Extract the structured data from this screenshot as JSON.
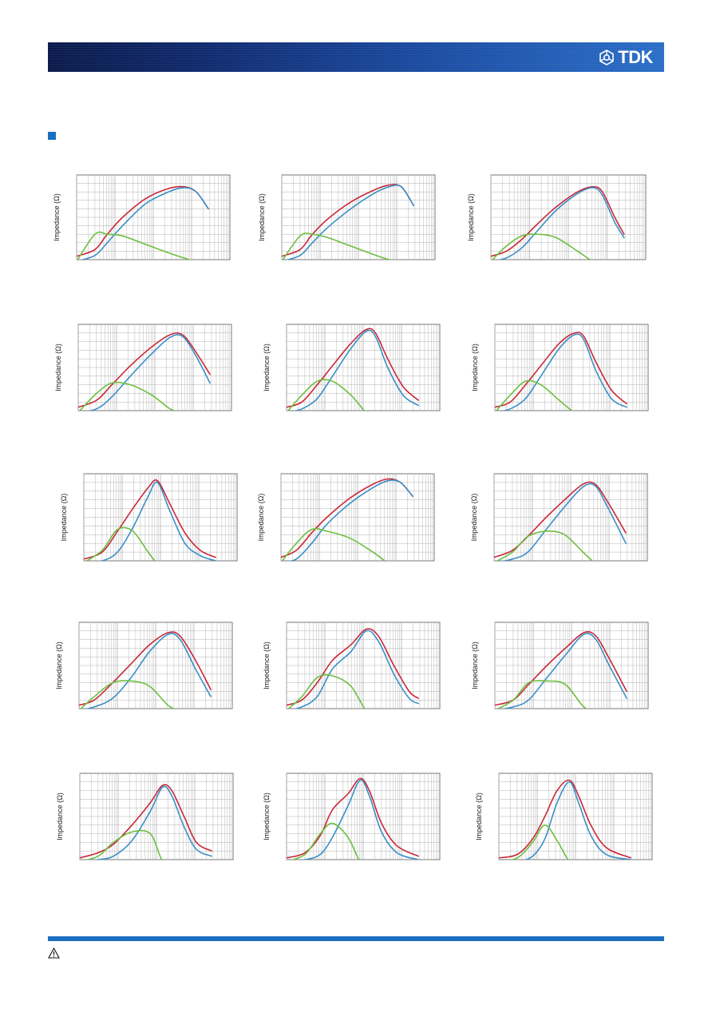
{
  "header": {
    "brand": "TDK",
    "logo_icon": "tdk-emblem-icon"
  },
  "warning_icon": "warning-triangle-icon",
  "colors": {
    "Z": "#c8283a",
    "X": "#3a8fc8",
    "R": "#6cbf3e",
    "grid": "#b0b0b0",
    "accent": "#1a6fc0"
  },
  "chart_data": [
    {
      "type": "line",
      "ylabel": "Impedance (Ω)",
      "x": [
        0,
        0.12,
        0.2,
        0.3,
        0.45,
        0.6,
        0.7,
        0.78,
        0.86
      ],
      "series": [
        {
          "values": [
            0.04,
            0.12,
            0.3,
            0.5,
            0.72,
            0.84,
            0.86,
            0.8,
            0.6
          ]
        },
        {
          "values": [
            -0.02,
            0.05,
            0.2,
            0.4,
            0.66,
            0.8,
            0.85,
            0.8,
            0.6
          ]
        },
        {
          "values": [
            -0.02,
            0.3,
            0.3,
            0.28,
            0.18,
            0.08,
            0.02,
            -0.02,
            -0.02
          ]
        }
      ]
    },
    {
      "type": "line",
      "ylabel": "Impedance (Ω)",
      "x": [
        0,
        0.12,
        0.2,
        0.3,
        0.45,
        0.6,
        0.7,
        0.78,
        0.86
      ],
      "series": [
        {
          "values": [
            0.04,
            0.12,
            0.3,
            0.48,
            0.68,
            0.82,
            0.88,
            0.86,
            0.64
          ]
        },
        {
          "values": [
            -0.02,
            0.05,
            0.2,
            0.38,
            0.6,
            0.78,
            0.86,
            0.86,
            0.64
          ]
        },
        {
          "values": [
            -0.02,
            0.28,
            0.3,
            0.26,
            0.16,
            0.06,
            0.0,
            -0.02,
            -0.02
          ]
        }
      ]
    },
    {
      "type": "line",
      "ylabel": "Impedance (Ω)",
      "x": [
        0,
        0.1,
        0.2,
        0.3,
        0.42,
        0.56,
        0.66,
        0.72,
        0.8,
        0.86
      ],
      "series": [
        {
          "values": [
            0.04,
            0.1,
            0.24,
            0.42,
            0.62,
            0.8,
            0.86,
            0.8,
            0.5,
            0.3
          ]
        },
        {
          "values": [
            -0.02,
            0.02,
            0.14,
            0.34,
            0.58,
            0.78,
            0.85,
            0.76,
            0.44,
            0.26
          ]
        },
        {
          "values": [
            -0.02,
            0.16,
            0.28,
            0.3,
            0.26,
            0.1,
            -0.02,
            -0.02,
            -0.02,
            -0.02
          ]
        }
      ]
    },
    {
      "type": "line",
      "ylabel": "Impedance (Ω)",
      "x": [
        0,
        0.12,
        0.22,
        0.34,
        0.48,
        0.6,
        0.68,
        0.76,
        0.86
      ],
      "series": [
        {
          "values": [
            0.04,
            0.12,
            0.3,
            0.52,
            0.74,
            0.88,
            0.88,
            0.7,
            0.42
          ]
        },
        {
          "values": [
            -0.02,
            0.02,
            0.16,
            0.4,
            0.66,
            0.85,
            0.86,
            0.66,
            0.32
          ]
        },
        {
          "values": [
            -0.02,
            0.2,
            0.32,
            0.3,
            0.18,
            0.02,
            -0.02,
            -0.02,
            -0.02
          ]
        }
      ]
    },
    {
      "type": "line",
      "ylabel": "Impedance (Ω)",
      "x": [
        0,
        0.1,
        0.2,
        0.3,
        0.42,
        0.52,
        0.58,
        0.66,
        0.76,
        0.86
      ],
      "series": [
        {
          "values": [
            0.04,
            0.1,
            0.3,
            0.52,
            0.78,
            0.94,
            0.9,
            0.6,
            0.28,
            0.12
          ]
        },
        {
          "values": [
            -0.02,
            0.02,
            0.14,
            0.4,
            0.72,
            0.92,
            0.86,
            0.5,
            0.18,
            0.06
          ]
        },
        {
          "values": [
            -0.02,
            0.18,
            0.34,
            0.34,
            0.18,
            -0.02,
            -0.02,
            -0.02,
            -0.02,
            -0.02
          ]
        }
      ]
    },
    {
      "type": "line",
      "ylabel": "Impedance (Ω)",
      "x": [
        0,
        0.1,
        0.2,
        0.3,
        0.42,
        0.52,
        0.58,
        0.66,
        0.76,
        0.86
      ],
      "series": [
        {
          "values": [
            0.04,
            0.1,
            0.3,
            0.52,
            0.78,
            0.9,
            0.86,
            0.56,
            0.24,
            0.08
          ]
        },
        {
          "values": [
            -0.02,
            0.02,
            0.14,
            0.4,
            0.72,
            0.88,
            0.82,
            0.46,
            0.14,
            0.04
          ]
        },
        {
          "values": [
            -0.02,
            0.18,
            0.34,
            0.3,
            0.12,
            -0.02,
            -0.02,
            -0.02,
            -0.02,
            -0.02
          ]
        }
      ]
    },
    {
      "type": "line",
      "ylabel": "Impedance (Ω)",
      "x": [
        0,
        0.12,
        0.22,
        0.32,
        0.42,
        0.48,
        0.56,
        0.66,
        0.76,
        0.86
      ],
      "series": [
        {
          "values": [
            0.02,
            0.1,
            0.34,
            0.6,
            0.84,
            0.92,
            0.66,
            0.32,
            0.12,
            0.04
          ]
        },
        {
          "values": [
            -0.02,
            0.0,
            0.1,
            0.38,
            0.74,
            0.9,
            0.58,
            0.2,
            0.06,
            0.0
          ]
        },
        {
          "values": [
            -0.02,
            0.12,
            0.36,
            0.34,
            0.1,
            -0.02,
            -0.02,
            -0.02,
            -0.02,
            -0.02
          ]
        }
      ]
    },
    {
      "type": "line",
      "ylabel": "Impedance (Ω)",
      "x": [
        0,
        0.1,
        0.2,
        0.3,
        0.45,
        0.6,
        0.7,
        0.78,
        0.86
      ],
      "series": [
        {
          "values": [
            0.04,
            0.12,
            0.32,
            0.5,
            0.72,
            0.88,
            0.94,
            0.9,
            0.74
          ]
        },
        {
          "values": [
            -0.02,
            0.02,
            0.2,
            0.42,
            0.66,
            0.84,
            0.92,
            0.9,
            0.74
          ]
        },
        {
          "values": [
            -0.02,
            0.2,
            0.36,
            0.34,
            0.26,
            0.1,
            -0.02,
            -0.02,
            -0.02
          ]
        }
      ]
    },
    {
      "type": "line",
      "ylabel": "Impedance (Ω)",
      "x": [
        0,
        0.12,
        0.22,
        0.34,
        0.46,
        0.58,
        0.66,
        0.74,
        0.86
      ],
      "series": [
        {
          "values": [
            0.04,
            0.12,
            0.28,
            0.5,
            0.7,
            0.88,
            0.88,
            0.68,
            0.32
          ]
        },
        {
          "values": [
            -0.02,
            0.02,
            0.1,
            0.36,
            0.62,
            0.85,
            0.86,
            0.62,
            0.2
          ]
        },
        {
          "values": [
            -0.02,
            0.1,
            0.28,
            0.34,
            0.3,
            0.1,
            -0.02,
            -0.02,
            -0.02
          ]
        }
      ]
    },
    {
      "type": "line",
      "ylabel": "Impedance (Ω)",
      "x": [
        0,
        0.1,
        0.22,
        0.34,
        0.46,
        0.58,
        0.66,
        0.76,
        0.86
      ],
      "series": [
        {
          "values": [
            0.04,
            0.1,
            0.3,
            0.52,
            0.74,
            0.88,
            0.84,
            0.56,
            0.22
          ]
        },
        {
          "values": [
            -0.02,
            0.02,
            0.12,
            0.36,
            0.66,
            0.86,
            0.8,
            0.46,
            0.14
          ]
        },
        {
          "values": [
            -0.02,
            0.14,
            0.3,
            0.32,
            0.26,
            0.04,
            -0.02,
            -0.02,
            -0.02
          ]
        }
      ]
    },
    {
      "type": "line",
      "ylabel": "Impedance (Ω)",
      "x": [
        0,
        0.1,
        0.2,
        0.3,
        0.42,
        0.52,
        0.6,
        0.7,
        0.8,
        0.86
      ],
      "series": [
        {
          "values": [
            0.04,
            0.1,
            0.3,
            0.56,
            0.74,
            0.92,
            0.84,
            0.5,
            0.2,
            0.12
          ]
        },
        {
          "values": [
            -0.02,
            0.02,
            0.14,
            0.46,
            0.66,
            0.9,
            0.78,
            0.4,
            0.12,
            0.06
          ]
        },
        {
          "values": [
            -0.02,
            0.14,
            0.36,
            0.38,
            0.26,
            -0.02,
            -0.02,
            -0.02,
            -0.02,
            -0.02
          ]
        }
      ]
    },
    {
      "type": "line",
      "ylabel": "Impedance (Ω)",
      "x": [
        0,
        0.12,
        0.22,
        0.34,
        0.46,
        0.58,
        0.66,
        0.74,
        0.86
      ],
      "series": [
        {
          "values": [
            0.04,
            0.1,
            0.28,
            0.5,
            0.7,
            0.88,
            0.84,
            0.6,
            0.2
          ]
        },
        {
          "values": [
            -0.02,
            0.02,
            0.1,
            0.36,
            0.62,
            0.86,
            0.8,
            0.52,
            0.12
          ]
        },
        {
          "values": [
            -0.02,
            0.1,
            0.3,
            0.32,
            0.28,
            0.02,
            -0.02,
            -0.02,
            -0.02
          ]
        }
      ]
    },
    {
      "type": "line",
      "ylabel": "Impedance (Ω)",
      "x": [
        0,
        0.12,
        0.22,
        0.34,
        0.46,
        0.54,
        0.6,
        0.68,
        0.76,
        0.86
      ],
      "series": [
        {
          "values": [
            0.02,
            0.08,
            0.18,
            0.4,
            0.66,
            0.86,
            0.8,
            0.5,
            0.2,
            0.1
          ]
        },
        {
          "values": [
            -0.02,
            0.0,
            0.04,
            0.22,
            0.56,
            0.84,
            0.74,
            0.38,
            0.12,
            0.04
          ]
        },
        {
          "values": [
            -0.02,
            0.04,
            0.2,
            0.32,
            0.3,
            -0.02,
            -0.02,
            -0.02,
            -0.02,
            -0.02
          ]
        }
      ]
    },
    {
      "type": "line",
      "ylabel": "Impedance (Ω)",
      "x": [
        0,
        0.12,
        0.22,
        0.3,
        0.4,
        0.48,
        0.54,
        0.62,
        0.72,
        0.86
      ],
      "series": [
        {
          "values": [
            0.02,
            0.08,
            0.28,
            0.58,
            0.76,
            0.94,
            0.8,
            0.42,
            0.16,
            0.04
          ]
        },
        {
          "values": [
            -0.02,
            0.0,
            0.06,
            0.26,
            0.62,
            0.92,
            0.74,
            0.32,
            0.08,
            0.0
          ]
        },
        {
          "values": [
            -0.02,
            0.06,
            0.3,
            0.42,
            0.26,
            -0.02,
            -0.02,
            -0.02,
            -0.02,
            -0.02
          ]
        }
      ]
    },
    {
      "type": "line",
      "ylabel": "Impedance (Ω)",
      "x": [
        0,
        0.12,
        0.22,
        0.3,
        0.38,
        0.46,
        0.52,
        0.6,
        0.7,
        0.86
      ],
      "series": [
        {
          "values": [
            0.02,
            0.06,
            0.24,
            0.5,
            0.8,
            0.92,
            0.74,
            0.4,
            0.14,
            0.02
          ]
        },
        {
          "values": [
            -0.02,
            -0.02,
            0.04,
            0.24,
            0.66,
            0.9,
            0.66,
            0.28,
            0.06,
            0.0
          ]
        },
        {
          "values": [
            -0.02,
            0.02,
            0.2,
            0.4,
            0.22,
            -0.02,
            -0.02,
            -0.02,
            -0.02,
            -0.02
          ]
        }
      ]
    }
  ]
}
